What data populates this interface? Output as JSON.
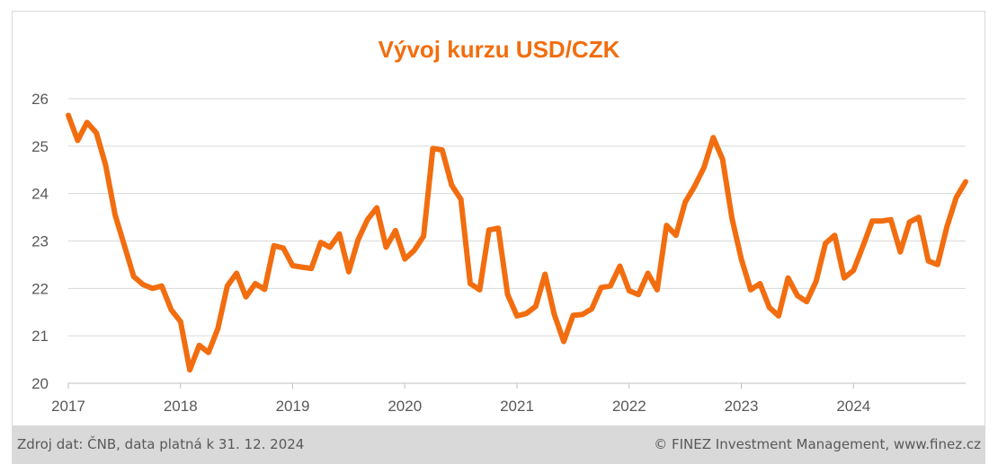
{
  "chart_data": {
    "type": "line",
    "title": "Vývoj kurzu USD/CZK",
    "xlabel": "",
    "ylabel": "",
    "ylim": [
      20,
      26
    ],
    "yticks": [
      20,
      21,
      22,
      23,
      24,
      25,
      26
    ],
    "xlim": [
      2017,
      2025
    ],
    "xticks": [
      2017,
      2018,
      2019,
      2020,
      2021,
      2022,
      2023,
      2024
    ],
    "grid": true,
    "line_color": "#f26d0f",
    "series": [
      {
        "x": [
          2017.0,
          2017.083,
          2017.167,
          2017.25,
          2017.333,
          2017.417,
          2017.5,
          2017.583,
          2017.667,
          2017.75,
          2017.833,
          2017.917,
          2018.0,
          2018.083,
          2018.167,
          2018.25,
          2018.333,
          2018.417,
          2018.5,
          2018.583,
          2018.667,
          2018.75,
          2018.833,
          2018.917,
          2019.0,
          2019.083,
          2019.167,
          2019.25,
          2019.333,
          2019.417,
          2019.5,
          2019.583,
          2019.667,
          2019.75,
          2019.833,
          2019.917,
          2020.0,
          2020.083,
          2020.167,
          2020.25,
          2020.333,
          2020.417,
          2020.5,
          2020.583,
          2020.667,
          2020.75,
          2020.833,
          2020.917,
          2021.0,
          2021.083,
          2021.167,
          2021.25,
          2021.333,
          2021.417,
          2021.5,
          2021.583,
          2021.667,
          2021.75,
          2021.833,
          2021.917,
          2022.0,
          2022.083,
          2022.167,
          2022.25,
          2022.333,
          2022.417,
          2022.5,
          2022.583,
          2022.667,
          2022.75,
          2022.833,
          2022.917,
          2023.0,
          2023.083,
          2023.167,
          2023.25,
          2023.333,
          2023.417,
          2023.5,
          2023.583,
          2023.667,
          2023.75,
          2023.833,
          2023.917,
          2024.0,
          2024.083,
          2024.167,
          2024.25,
          2024.333,
          2024.417,
          2024.5,
          2024.583,
          2024.667,
          2024.75,
          2024.833,
          2024.917,
          2025.0
        ],
        "y": [
          25.65,
          25.12,
          25.5,
          25.28,
          24.6,
          23.55,
          22.9,
          22.25,
          22.08,
          22.0,
          22.05,
          21.55,
          21.3,
          20.28,
          20.8,
          20.65,
          21.15,
          22.05,
          22.32,
          21.82,
          22.1,
          21.98,
          22.9,
          22.85,
          22.48,
          22.45,
          22.42,
          22.97,
          22.87,
          23.15,
          22.35,
          23.02,
          23.45,
          23.7,
          22.87,
          23.22,
          22.62,
          22.8,
          23.1,
          24.95,
          24.92,
          24.18,
          23.88,
          22.1,
          21.97,
          23.23,
          23.27,
          21.87,
          21.42,
          21.47,
          21.62,
          22.3,
          21.45,
          20.88,
          21.43,
          21.45,
          21.57,
          22.02,
          22.05,
          22.47,
          21.95,
          21.87,
          22.32,
          21.97,
          23.33,
          23.12,
          23.82,
          24.15,
          24.55,
          25.18,
          24.72,
          23.48,
          22.62,
          21.97,
          22.1,
          21.6,
          21.42,
          22.22,
          21.85,
          21.72,
          22.15,
          22.95,
          23.12,
          22.22,
          22.38,
          22.88,
          23.42,
          23.42,
          23.45,
          22.77,
          23.4,
          23.5,
          22.58,
          22.5,
          23.3,
          23.92,
          24.25
        ]
      }
    ]
  },
  "footer": {
    "source": "Zdroj dat: ČNB, data platná k 31. 12. 2024",
    "copyright": "© FINEZ Investment Management, www.finez.cz"
  }
}
